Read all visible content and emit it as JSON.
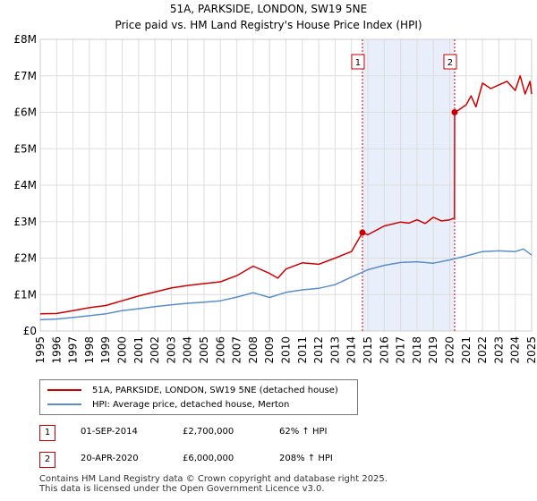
{
  "chart_data": {
    "type": "line",
    "title": "51A, PARKSIDE, LONDON, SW19 5NE",
    "subtitle": "Price paid vs. HM Land Registry's House Price Index (HPI)",
    "xlim": [
      1995,
      2025
    ],
    "ylim": [
      0,
      8000000
    ],
    "yticks": [
      {
        "value": 0,
        "label": "£0"
      },
      {
        "value": 1000000,
        "label": "£1M"
      },
      {
        "value": 2000000,
        "label": "£2M"
      },
      {
        "value": 3000000,
        "label": "£3M"
      },
      {
        "value": 4000000,
        "label": "£4M"
      },
      {
        "value": 5000000,
        "label": "£5M"
      },
      {
        "value": 6000000,
        "label": "£6M"
      },
      {
        "value": 7000000,
        "label": "£7M"
      },
      {
        "value": 8000000,
        "label": "£8M"
      }
    ],
    "xticks": [
      "1995",
      "1996",
      "1997",
      "1998",
      "1999",
      "2000",
      "2001",
      "2002",
      "2003",
      "2004",
      "2005",
      "2006",
      "2007",
      "2008",
      "2009",
      "2010",
      "2011",
      "2012",
      "2013",
      "2014",
      "2015",
      "2016",
      "2017",
      "2018",
      "2019",
      "2020",
      "2021",
      "2022",
      "2023",
      "2024",
      "2025"
    ],
    "grid": true,
    "shaded_region": {
      "from": 2014.67,
      "to": 2020.3
    },
    "series": [
      {
        "name": "51A, PARKSIDE, LONDON, SW19 5NE (detached house)",
        "color": "#cc0000",
        "x": [
          1995,
          1996,
          1997,
          1998,
          1999,
          2000,
          2001,
          2002,
          2003,
          2004,
          2005,
          2006,
          2007,
          2008,
          2009,
          2009.5,
          2010,
          2011,
          2012,
          2013,
          2014,
          2014.67,
          2015,
          2016,
          2017,
          2017.5,
          2018,
          2018.5,
          2019,
          2019.5,
          2020,
          2020.29,
          2020.3,
          2020.5,
          2021,
          2021.3,
          2021.6,
          2022,
          2022.5,
          2023,
          2023.5,
          2024,
          2024.3,
          2024.6,
          2024.9,
          2025
        ],
        "y": [
          470000,
          480000,
          560000,
          640000,
          700000,
          830000,
          960000,
          1070000,
          1180000,
          1250000,
          1300000,
          1350000,
          1520000,
          1780000,
          1580000,
          1450000,
          1700000,
          1870000,
          1830000,
          2000000,
          2180000,
          2700000,
          2640000,
          2880000,
          2990000,
          2960000,
          3050000,
          2950000,
          3120000,
          3020000,
          3050000,
          3100000,
          6000000,
          6050000,
          6200000,
          6450000,
          6150000,
          6800000,
          6650000,
          6750000,
          6850000,
          6600000,
          7000000,
          6500000,
          6850000,
          6500000
        ]
      },
      {
        "name": "HPI: Average price, detached house, Merton",
        "color": "#5b8dc9",
        "x": [
          1995,
          1996,
          1997,
          1998,
          1999,
          2000,
          2001,
          2002,
          2003,
          2004,
          2005,
          2006,
          2007,
          2008,
          2009,
          2010,
          2011,
          2012,
          2013,
          2014,
          2015,
          2016,
          2017,
          2018,
          2019,
          2020,
          2021,
          2022,
          2023,
          2024,
          2024.5,
          2025
        ],
        "y": [
          310000,
          330000,
          370000,
          420000,
          470000,
          560000,
          610000,
          670000,
          720000,
          760000,
          790000,
          830000,
          930000,
          1050000,
          920000,
          1060000,
          1130000,
          1170000,
          1270000,
          1480000,
          1680000,
          1800000,
          1880000,
          1900000,
          1860000,
          1950000,
          2060000,
          2180000,
          2200000,
          2180000,
          2250000,
          2080000
        ]
      }
    ],
    "sales": [
      {
        "label": "1",
        "x": 2014.67,
        "y": 2700000
      },
      {
        "label": "2",
        "x": 2020.3,
        "y": 6000000
      }
    ]
  },
  "legend": {
    "property": "51A, PARKSIDE, LONDON, SW19 5NE (detached house)",
    "hpi": "HPI: Average price, detached house, Merton"
  },
  "transactions": [
    {
      "num": "1",
      "date": "01-SEP-2014",
      "price": "£2,700,000",
      "hpi": "62% ↑ HPI"
    },
    {
      "num": "2",
      "date": "20-APR-2020",
      "price": "£6,000,000",
      "hpi": "208% ↑ HPI"
    }
  ],
  "footer": {
    "line1": "Contains HM Land Registry data © Crown copyright and database right 2025.",
    "line2": "This data is licensed under the Open Government Licence v3.0."
  },
  "colors": {
    "property": "#cc0000",
    "hpi": "#5b8dc9",
    "shade": "#e8eefa",
    "grid": "#dddddd"
  }
}
